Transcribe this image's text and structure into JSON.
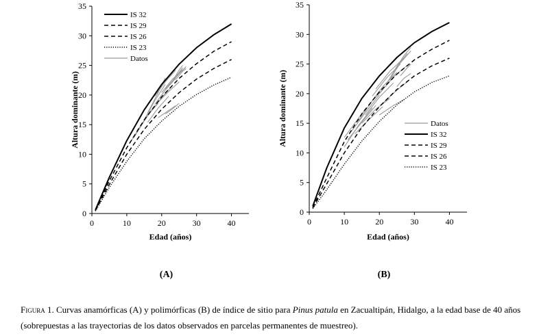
{
  "figure": {
    "caption": {
      "label": "Figura 1.",
      "text_before": " Curvas anamórficas (A) y polimórficas (B) de índice de sitio para ",
      "species": "Pinus patula",
      "text_after": " en Zacualtipán, Hidalgo, a la edad base de 40 años (sobrepuestas a las trayectorias de los datos observados en parcelas permanentes de muestreo)."
    }
  },
  "chart_data": [
    {
      "type": "line",
      "panel_label": "(A)",
      "xlabel": "Edad (años)",
      "ylabel": "Altura dominante (m)",
      "xlim": [
        0,
        45
      ],
      "ylim": [
        0,
        35
      ],
      "xticks": [
        0,
        10,
        20,
        30,
        40
      ],
      "yticks": [
        0,
        5,
        10,
        15,
        20,
        25,
        30,
        35
      ],
      "grid": false,
      "legend_position": "top-left",
      "legend_order": [
        "IS 32",
        "IS 29",
        "IS 26",
        "IS 23",
        "Datos"
      ],
      "series": [
        {
          "name": "IS 32",
          "style": "solid",
          "color": "#000000",
          "x": [
            1,
            5,
            10,
            15,
            20,
            25,
            30,
            35,
            40
          ],
          "y": [
            0.6,
            6.1,
            12.3,
            17.5,
            21.8,
            25.2,
            28.0,
            30.2,
            32.0
          ]
        },
        {
          "name": "IS 29",
          "style": "dashed",
          "color": "#000000",
          "x": [
            1,
            5,
            10,
            15,
            20,
            25,
            30,
            35,
            40
          ],
          "y": [
            0.5,
            5.5,
            11.1,
            15.8,
            19.7,
            22.8,
            25.3,
            27.4,
            29.0
          ]
        },
        {
          "name": "IS 26",
          "style": "dashed",
          "color": "#000000",
          "x": [
            1,
            5,
            10,
            15,
            20,
            25,
            30,
            35,
            40
          ],
          "y": [
            0.5,
            4.9,
            10.0,
            14.2,
            17.6,
            20.4,
            22.7,
            24.5,
            26.0
          ]
        },
        {
          "name": "IS 23",
          "style": "dotted",
          "color": "#000000",
          "x": [
            1,
            5,
            10,
            15,
            20,
            25,
            30,
            35,
            40
          ],
          "y": [
            0.4,
            4.4,
            8.8,
            12.6,
            15.6,
            18.1,
            20.1,
            21.7,
            23.0
          ]
        }
      ],
      "datos": {
        "name": "Datos",
        "color": "#999999",
        "trajectories": [
          [
            [
              11,
              12.0
            ],
            [
              14,
              14.8
            ],
            [
              17,
              17.5
            ]
          ],
          [
            [
              12,
              12.8
            ],
            [
              15,
              15.6
            ],
            [
              18,
              18.2
            ]
          ],
          [
            [
              15,
              15.8
            ],
            [
              18,
              19.0
            ],
            [
              21,
              21.8
            ]
          ],
          [
            [
              16,
              17.0
            ],
            [
              19,
              20.4
            ],
            [
              21,
              22.9
            ]
          ],
          [
            [
              16,
              15.4
            ],
            [
              19,
              17.8
            ],
            [
              22,
              19.8
            ]
          ],
          [
            [
              17,
              17.2
            ],
            [
              20,
              19.6
            ],
            [
              23,
              21.5
            ]
          ],
          [
            [
              18,
              18.4
            ],
            [
              21,
              20.8
            ],
            [
              24,
              22.8
            ]
          ],
          [
            [
              18,
              19.8
            ],
            [
              21,
              22.2
            ],
            [
              24,
              24.2
            ]
          ],
          [
            [
              19,
              18.8
            ],
            [
              22,
              20.6
            ],
            [
              25,
              22.2
            ]
          ],
          [
            [
              20,
              20.4
            ],
            [
              23,
              22.6
            ],
            [
              26,
              24.3
            ]
          ],
          [
            [
              21,
              21.0
            ],
            [
              24,
              23.0
            ],
            [
              26,
              24.6
            ]
          ],
          [
            [
              22,
              21.6
            ],
            [
              25,
              23.6
            ],
            [
              27,
              24.8
            ]
          ],
          [
            [
              23,
              22.2
            ],
            [
              25,
              24.2
            ],
            [
              26,
              25.0
            ]
          ],
          [
            [
              24,
              22.6
            ],
            [
              26,
              24.0
            ],
            [
              27,
              24.5
            ]
          ],
          [
            [
              21,
              16.8
            ],
            [
              23,
              17.6
            ],
            [
              25,
              18.6
            ]
          ],
          [
            [
              19,
              16.2
            ],
            [
              22,
              17.4
            ],
            [
              24,
              18.2
            ]
          ],
          [
            [
              13,
              14.0
            ],
            [
              16,
              16.6
            ],
            [
              19,
              18.6
            ]
          ]
        ]
      }
    },
    {
      "type": "line",
      "panel_label": "(B)",
      "xlabel": "Edad (años)",
      "ylabel": "Altura dominante (m)",
      "xlim": [
        0,
        45
      ],
      "ylim": [
        0,
        35
      ],
      "xticks": [
        0,
        10,
        20,
        30,
        40
      ],
      "yticks": [
        0,
        5,
        10,
        15,
        20,
        25,
        30,
        35
      ],
      "grid": false,
      "legend_position": "bottom-right",
      "legend_order": [
        "Datos",
        "IS 32",
        "IS 29",
        "IS 26",
        "IS 23"
      ],
      "series": [
        {
          "name": "IS 32",
          "style": "solid",
          "color": "#000000",
          "x": [
            1,
            5,
            10,
            15,
            20,
            25,
            30,
            35,
            40
          ],
          "y": [
            1.0,
            7.5,
            14.2,
            19.2,
            23.0,
            26.1,
            28.6,
            30.5,
            32.0
          ]
        },
        {
          "name": "IS 29",
          "style": "dashed",
          "color": "#000000",
          "x": [
            1,
            5,
            10,
            15,
            20,
            25,
            30,
            35,
            40
          ],
          "y": [
            0.8,
            5.8,
            11.9,
            16.6,
            20.3,
            23.3,
            25.7,
            27.5,
            29.0
          ]
        },
        {
          "name": "IS 26",
          "style": "dashed",
          "color": "#000000",
          "x": [
            1,
            5,
            10,
            15,
            20,
            25,
            30,
            35,
            40
          ],
          "y": [
            0.7,
            4.8,
            10.0,
            14.3,
            17.8,
            20.7,
            23.0,
            24.7,
            26.0
          ]
        },
        {
          "name": "IS 23",
          "style": "dotted",
          "color": "#000000",
          "x": [
            1,
            5,
            10,
            15,
            20,
            25,
            30,
            35,
            40
          ],
          "y": [
            0.6,
            3.8,
            8.1,
            12.0,
            15.3,
            18.1,
            20.3,
            21.9,
            23.0
          ]
        }
      ],
      "datos": {
        "name": "Datos",
        "color": "#999999",
        "trajectories": [
          [
            [
              10,
              11.0
            ],
            [
              14,
              14.6
            ],
            [
              18,
              17.6
            ]
          ],
          [
            [
              10,
              12.6
            ],
            [
              13,
              15.0
            ],
            [
              16,
              17.4
            ]
          ],
          [
            [
              11,
              12.2
            ],
            [
              15,
              15.2
            ],
            [
              19,
              18.0
            ]
          ],
          [
            [
              12,
              13.6
            ],
            [
              16,
              16.8
            ],
            [
              20,
              19.8
            ]
          ],
          [
            [
              13,
              13.2
            ],
            [
              17,
              15.6
            ],
            [
              21,
              17.8
            ]
          ],
          [
            [
              14,
              15.4
            ],
            [
              18,
              18.8
            ],
            [
              22,
              21.4
            ]
          ],
          [
            [
              15,
              15.0
            ],
            [
              19,
              17.4
            ],
            [
              23,
              19.2
            ]
          ],
          [
            [
              16,
              16.4
            ],
            [
              20,
              19.4
            ],
            [
              24,
              21.8
            ]
          ],
          [
            [
              17,
              18.0
            ],
            [
              21,
              21.2
            ],
            [
              25,
              23.6
            ]
          ],
          [
            [
              18,
              19.6
            ],
            [
              22,
              22.6
            ],
            [
              26,
              25.0
            ]
          ],
          [
            [
              19,
              20.8
            ],
            [
              23,
              23.8
            ],
            [
              27,
              26.0
            ]
          ],
          [
            [
              20,
              20.0
            ],
            [
              24,
              22.8
            ],
            [
              28,
              24.8
            ]
          ],
          [
            [
              21,
              18.4
            ],
            [
              25,
              20.6
            ],
            [
              28,
              22.0
            ]
          ],
          [
            [
              22,
              21.6
            ],
            [
              25,
              24.6
            ],
            [
              28,
              26.8
            ]
          ],
          [
            [
              23,
              22.4
            ],
            [
              26,
              25.2
            ],
            [
              29,
              27.2
            ]
          ],
          [
            [
              24,
              23.6
            ],
            [
              27,
              26.4
            ],
            [
              29,
              27.8
            ]
          ],
          [
            [
              20,
              16.4
            ],
            [
              24,
              18.0
            ],
            [
              27,
              19.0
            ]
          ],
          [
            [
              25,
              21.2
            ],
            [
              27,
              22.6
            ],
            [
              29,
              23.4
            ]
          ],
          [
            [
              26,
              23.0
            ],
            [
              28,
              24.4
            ],
            [
              29,
              25.0
            ]
          ]
        ]
      }
    }
  ]
}
